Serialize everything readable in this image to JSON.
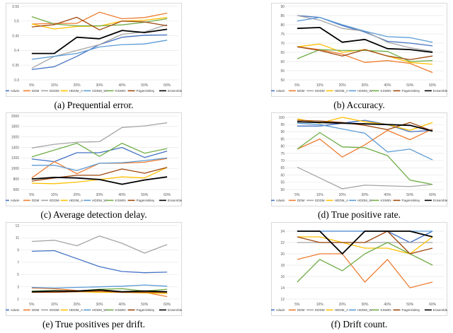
{
  "colors": {
    "Adwin": "#4472C4",
    "DDM": "#ED7D31",
    "EDDM": "#A5A5A5",
    "HDDM_A": "#FFC000",
    "HDDM_W": "#5B9BD5",
    "KSWIN": "#70AD47",
    "PageHinkley": "#9E480E",
    "Ensemble": "#000000"
  },
  "chart_data": [
    {
      "type": "line",
      "caption": "(a) Prequential error.",
      "x": [
        "5%",
        "10%",
        "20%",
        "30%",
        "40%",
        "50%",
        "60%"
      ],
      "ylim": [
        0.3,
        0.55
      ],
      "yticks": [
        0.3,
        0.35,
        0.4,
        0.45,
        0.5,
        0.55
      ],
      "grid": true,
      "legend_position": "bottom",
      "series": [
        {
          "name": "Adwin",
          "values": [
            0.335,
            0.345,
            0.38,
            0.42,
            0.445,
            0.452,
            0.453
          ]
        },
        {
          "name": "DDM",
          "values": [
            0.49,
            0.492,
            0.492,
            0.53,
            0.508,
            0.512,
            0.527
          ]
        },
        {
          "name": "EDDM",
          "values": [
            0.34,
            0.38,
            0.4,
            0.42,
            0.455,
            0.463,
            0.488
          ]
        },
        {
          "name": "HDDM_A",
          "values": [
            0.49,
            0.473,
            0.482,
            0.483,
            0.5,
            0.503,
            0.512
          ]
        },
        {
          "name": "HDDM_W",
          "values": [
            0.37,
            0.38,
            0.39,
            0.412,
            0.42,
            0.422,
            0.435
          ]
        },
        {
          "name": "KSWIN",
          "values": [
            0.515,
            0.49,
            0.484,
            0.484,
            0.487,
            0.496,
            0.508
          ]
        },
        {
          "name": "PageHinkley",
          "values": [
            0.48,
            0.488,
            0.513,
            0.47,
            0.5,
            0.497,
            0.484
          ]
        },
        {
          "name": "Ensemble",
          "values": [
            0.39,
            0.39,
            0.445,
            0.44,
            0.468,
            0.461,
            0.472
          ]
        }
      ]
    },
    {
      "type": "line",
      "caption": "(b) Accuracy.",
      "x": [
        "5%",
        "10%",
        "20%",
        "30%",
        "40%",
        "50%",
        "60%"
      ],
      "ylim": [
        50,
        90
      ],
      "yticks": [
        50,
        55,
        60,
        65,
        70,
        75,
        80,
        85,
        90
      ],
      "grid": true,
      "legend_position": "bottom",
      "series": [
        {
          "name": "Adwin",
          "values": [
            85,
            84,
            79.5,
            76,
            71,
            70,
            68.5
          ]
        },
        {
          "name": "DDM",
          "values": [
            68,
            66.5,
            64,
            59.5,
            60.5,
            59,
            54
          ]
        },
        {
          "name": "EDDM",
          "values": [
            85,
            82.5,
            78,
            76.5,
            70.5,
            67.5,
            65.5
          ]
        },
        {
          "name": "HDDM_A",
          "values": [
            68,
            69.5,
            65,
            66.5,
            63,
            59.5,
            58.5
          ]
        },
        {
          "name": "HDDM_W",
          "values": [
            82,
            84,
            80,
            76.5,
            73.5,
            73,
            70.5
          ]
        },
        {
          "name": "KSWIN",
          "values": [
            61.5,
            66.5,
            66,
            66,
            65.5,
            60,
            60.5
          ]
        },
        {
          "name": "PageHinkley",
          "values": [
            68,
            66,
            63,
            66.5,
            63,
            61,
            63
          ]
        },
        {
          "name": "Ensemble",
          "values": [
            78,
            78.5,
            70.5,
            72,
            67,
            66.5,
            65
          ]
        }
      ]
    },
    {
      "type": "line",
      "caption": "(c) Average detection delay.",
      "x": [
        "5%",
        "10%",
        "20%",
        "30%",
        "40%",
        "50%",
        "60%"
      ],
      "ylim": [
        600,
        2000
      ],
      "yticks": [
        600,
        800,
        1000,
        1200,
        1400,
        1600,
        1800,
        2000
      ],
      "grid": true,
      "legend_position": "bottom",
      "series": [
        {
          "name": "Adwin",
          "values": [
            1180,
            1130,
            1300,
            1300,
            1400,
            1210,
            1330
          ]
        },
        {
          "name": "DDM",
          "values": [
            820,
            1130,
            900,
            1100,
            1100,
            1120,
            1190
          ]
        },
        {
          "name": "EDDM",
          "values": [
            1390,
            1460,
            1500,
            1510,
            1780,
            1810,
            1870
          ]
        },
        {
          "name": "HDDM_A",
          "values": [
            720,
            710,
            740,
            790,
            840,
            820,
            1020
          ]
        },
        {
          "name": "HDDM_W",
          "values": [
            1060,
            1060,
            960,
            1100,
            1110,
            1150,
            1200
          ]
        },
        {
          "name": "KSWIN",
          "values": [
            1220,
            1350,
            1480,
            1230,
            1480,
            1290,
            1380
          ]
        },
        {
          "name": "PageHinkley",
          "values": [
            760,
            820,
            870,
            870,
            990,
            910,
            1020
          ]
        },
        {
          "name": "Ensemble",
          "values": [
            800,
            830,
            820,
            790,
            700,
            780,
            840
          ]
        }
      ]
    },
    {
      "type": "line",
      "caption": "(d) True positive rate.",
      "x": [
        "5%",
        "10%",
        "20%",
        "30%",
        "40%",
        "50%",
        "60%"
      ],
      "ylim": [
        50,
        101
      ],
      "yticks": [
        50,
        55,
        60,
        65,
        70,
        75,
        80,
        85,
        90,
        95,
        100
      ],
      "grid": true,
      "legend_position": "bottom",
      "series": [
        {
          "name": "Adwin",
          "values": [
            94,
            94,
            96,
            98,
            95,
            90,
            91
          ]
        },
        {
          "name": "DDM",
          "values": [
            78,
            85,
            72.5,
            81,
            91,
            84.5,
            92
          ]
        },
        {
          "name": "EDDM",
          "values": [
            65.5,
            58,
            50.5,
            53,
            52.5,
            52,
            53.5
          ]
        },
        {
          "name": "HDDM_A",
          "values": [
            99,
            96,
            100,
            97,
            95,
            91,
            96.5
          ]
        },
        {
          "name": "HDDM_W",
          "values": [
            96,
            95,
            92,
            89,
            76,
            78,
            70.5
          ]
        },
        {
          "name": "KSWIN",
          "values": [
            78,
            89.5,
            79.5,
            79,
            73.5,
            56.5,
            53.5
          ]
        },
        {
          "name": "PageHinkley",
          "values": [
            98,
            97.5,
            96.5,
            94.5,
            91.5,
            96.5,
            90.5
          ]
        },
        {
          "name": "Ensemble",
          "values": [
            97,
            96.5,
            96,
            95.5,
            95,
            94.5,
            90.5
          ]
        }
      ]
    },
    {
      "type": "line",
      "caption": "(e) True positives per drift.",
      "x": [
        "5%",
        "10%",
        "20%",
        "30%",
        "40%",
        "50%",
        "60%"
      ],
      "ylim": [
        1,
        13
      ],
      "yticks": [
        1,
        3,
        5,
        7,
        9,
        11,
        13
      ],
      "grid": true,
      "legend_position": "bottom",
      "series": [
        {
          "name": "Adwin",
          "values": [
            8.8,
            8.9,
            7.6,
            6.3,
            5.5,
            5.3,
            5.4
          ]
        },
        {
          "name": "DDM",
          "values": [
            2.8,
            2.7,
            2.4,
            2.1,
            2.2,
            2.1,
            1.4
          ]
        },
        {
          "name": "EDDM",
          "values": [
            10.4,
            10.6,
            9.7,
            11.3,
            10.1,
            8.5,
            9.9
          ]
        },
        {
          "name": "HDDM_A",
          "values": [
            2.2,
            2.1,
            2.2,
            2.1,
            2.1,
            2.0,
            1.9
          ]
        },
        {
          "name": "HDDM_W",
          "values": [
            2.9,
            2.8,
            2.9,
            3.0,
            3.1,
            3.3,
            3.1
          ]
        },
        {
          "name": "KSWIN",
          "values": [
            2.3,
            2.4,
            2.3,
            2.6,
            2.7,
            2.3,
            2.6
          ]
        },
        {
          "name": "PageHinkley",
          "values": [
            2.1,
            2.1,
            2.2,
            2.3,
            2.1,
            2.1,
            2.1
          ]
        },
        {
          "name": "Ensemble",
          "values": [
            2.2,
            2.3,
            2.3,
            2.5,
            2.2,
            2.3,
            2.2
          ]
        }
      ]
    },
    {
      "type": "line",
      "caption": "(f) Drift count.",
      "x": [
        "5%",
        "10%",
        "20%",
        "30%",
        "40%",
        "50%",
        "60%"
      ],
      "ylim": [
        12,
        25
      ],
      "yticks": [
        12,
        14,
        16,
        18,
        20,
        22,
        24
      ],
      "grid": true,
      "legend_position": "bottom",
      "series": [
        {
          "name": "Adwin",
          "values": [
            24,
            24,
            24,
            24,
            24,
            22,
            24
          ]
        },
        {
          "name": "DDM",
          "values": [
            19,
            20,
            20,
            15,
            19,
            14,
            15
          ]
        },
        {
          "name": "EDDM",
          "values": [
            22,
            22,
            22,
            22,
            22,
            22,
            22
          ]
        },
        {
          "name": "HDDM_A",
          "values": [
            23,
            23,
            22,
            21,
            21,
            20,
            23
          ]
        },
        {
          "name": "HDDM_W",
          "values": [
            24,
            24,
            24,
            24,
            24,
            24,
            24
          ]
        },
        {
          "name": "KSWIN",
          "values": [
            15,
            19,
            17,
            20,
            22,
            20,
            18
          ]
        },
        {
          "name": "PageHinkley",
          "values": [
            23,
            22,
            22,
            22,
            24,
            20,
            21
          ]
        },
        {
          "name": "Ensemble",
          "values": [
            24,
            24,
            20,
            24,
            24,
            24,
            23
          ]
        }
      ]
    }
  ]
}
